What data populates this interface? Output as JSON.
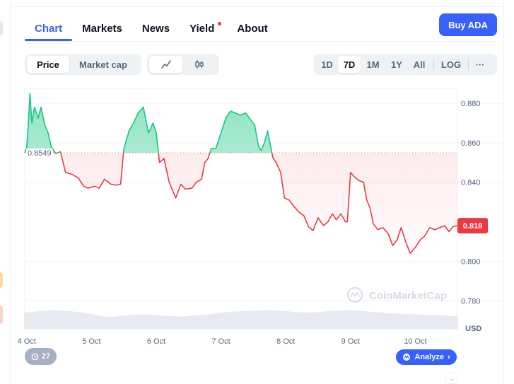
{
  "tabs": [
    {
      "label": "Chart",
      "active": true
    },
    {
      "label": "Markets",
      "active": false
    },
    {
      "label": "News",
      "active": false
    },
    {
      "label": "Yield",
      "active": false,
      "has_dot": true
    },
    {
      "label": "About",
      "active": false
    }
  ],
  "buy_button": "Buy ADA",
  "metric_toggle": {
    "options": [
      "Price",
      "Market cap"
    ],
    "selected": "Price"
  },
  "chart_style_toggle": {
    "options": [
      "line-chart-icon",
      "candlestick-icon"
    ],
    "selected": "line-chart-icon"
  },
  "range_toggle": {
    "options": [
      "1D",
      "7D",
      "1M",
      "1Y",
      "All"
    ],
    "selected": "7D",
    "log_label": "LOG",
    "more_label": "···"
  },
  "colors": {
    "up": "#16c784",
    "down": "#ea3943",
    "accent": "#3861fb",
    "grid": "#eff2f5",
    "volume": "#e7ebf1"
  },
  "watermark": "CoinMarketCap",
  "history_badge": "27",
  "analyze_button": "Analyze",
  "chart_data": {
    "type": "line",
    "baseline": {
      "label": "0.8549",
      "value": 0.8549
    },
    "current_price": {
      "label": "0.818",
      "value": 0.818
    },
    "y_ticks": [
      "0.880",
      "0.860",
      "0.840",
      "0.800",
      "0.780"
    ],
    "ylim": [
      0.7665,
      0.8875
    ],
    "yunit": "USD",
    "x_ticks": [
      "4 Oct",
      "5 Oct",
      "6 Oct",
      "7 Oct",
      "8 Oct",
      "9 Oct",
      "10 Oct"
    ],
    "xlim": [
      3.97,
      10.65
    ],
    "series": [
      {
        "x": [
          3.97,
          4.0,
          4.03,
          4.05,
          4.08,
          4.12,
          4.18,
          4.22,
          4.28,
          4.33,
          4.38,
          4.45,
          4.52,
          4.6,
          4.7,
          4.8,
          4.88,
          4.95,
          5.05,
          5.12,
          5.2,
          5.3,
          5.38,
          5.45,
          5.5,
          5.58,
          5.65,
          5.72,
          5.8,
          5.88,
          5.95,
          6.0,
          6.05,
          6.12,
          6.2,
          6.3,
          6.38,
          6.45,
          6.55,
          6.62,
          6.7,
          6.75,
          6.8,
          6.85,
          6.92,
          7.0,
          7.08,
          7.15,
          7.22,
          7.3,
          7.38,
          7.45,
          7.52,
          7.58,
          7.62,
          7.67,
          7.72,
          7.8,
          7.85,
          7.92,
          7.98,
          8.05,
          8.12,
          8.2,
          8.28,
          8.35,
          8.42,
          8.5,
          8.58,
          8.65,
          8.72,
          8.78,
          8.85,
          8.92,
          8.95,
          9.0,
          9.05,
          9.12,
          9.2,
          9.25,
          9.3,
          9.35,
          9.42,
          9.5,
          9.58,
          9.65,
          9.72,
          9.78,
          9.85,
          9.92,
          10.0,
          10.08,
          10.15,
          10.22,
          10.3,
          10.38,
          10.45,
          10.52,
          10.58,
          10.65
        ],
        "y": [
          0.8549,
          0.8575,
          0.872,
          0.885,
          0.87,
          0.878,
          0.8725,
          0.878,
          0.869,
          0.865,
          0.858,
          0.8545,
          0.8555,
          0.845,
          0.844,
          0.842,
          0.838,
          0.837,
          0.838,
          0.837,
          0.8415,
          0.839,
          0.8385,
          0.839,
          0.857,
          0.866,
          0.87,
          0.875,
          0.878,
          0.865,
          0.87,
          0.865,
          0.85,
          0.852,
          0.84,
          0.832,
          0.839,
          0.8365,
          0.837,
          0.84,
          0.8415,
          0.85,
          0.852,
          0.857,
          0.857,
          0.865,
          0.873,
          0.876,
          0.875,
          0.874,
          0.875,
          0.872,
          0.869,
          0.858,
          0.856,
          0.86,
          0.866,
          0.8525,
          0.85,
          0.845,
          0.832,
          0.831,
          0.828,
          0.825,
          0.823,
          0.8175,
          0.8155,
          0.822,
          0.818,
          0.82,
          0.824,
          0.821,
          0.824,
          0.82,
          0.82,
          0.845,
          0.843,
          0.841,
          0.84,
          0.831,
          0.827,
          0.819,
          0.816,
          0.817,
          0.814,
          0.808,
          0.811,
          0.817,
          0.81,
          0.804,
          0.807,
          0.811,
          0.813,
          0.817,
          0.816,
          0.817,
          0.818,
          0.815,
          0.8175,
          0.818
        ]
      }
    ],
    "volume": [
      0.38,
      0.41,
      0.43,
      0.44,
      0.42,
      0.4,
      0.36,
      0.31,
      0.28,
      0.3,
      0.33,
      0.34,
      0.33,
      0.31,
      0.3,
      0.29,
      0.31,
      0.33,
      0.36,
      0.39,
      0.41,
      0.42,
      0.43,
      0.44,
      0.43,
      0.41,
      0.39,
      0.38,
      0.4,
      0.42,
      0.43,
      0.44,
      0.42,
      0.4,
      0.38,
      0.36,
      0.35,
      0.34,
      0.33,
      0.32,
      0.31,
      0.3
    ]
  }
}
